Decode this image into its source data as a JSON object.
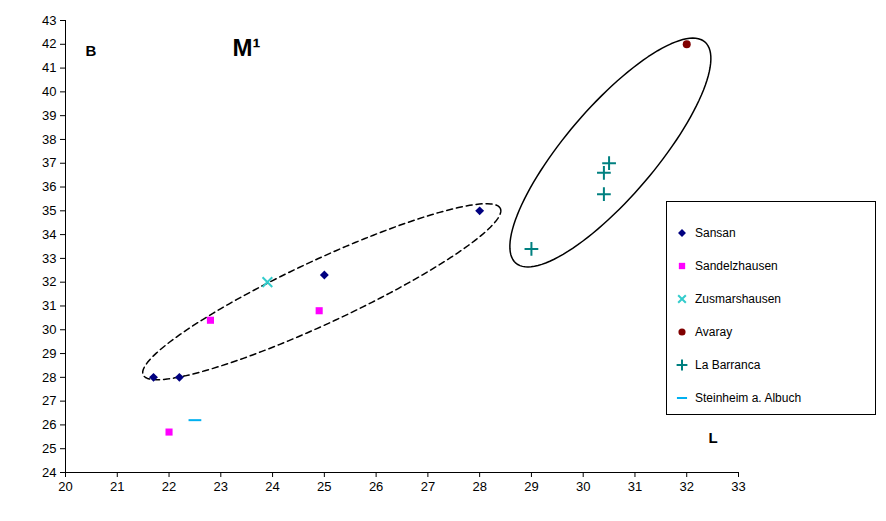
{
  "chart_data": {
    "type": "scatter",
    "title": "M¹",
    "x_label": "L",
    "y_label": "B",
    "xlim": [
      20,
      33
    ],
    "xticks": [
      20,
      21,
      22,
      23,
      24,
      25,
      26,
      27,
      28,
      29,
      30,
      31,
      32,
      33
    ],
    "ylim": [
      24,
      43
    ],
    "yticks": [
      24,
      25,
      26,
      27,
      28,
      29,
      30,
      31,
      32,
      33,
      34,
      35,
      36,
      37,
      38,
      39,
      40,
      41,
      42,
      43
    ],
    "grid": false,
    "legend": "right",
    "series": [
      {
        "name": "Sansan",
        "color": "#000080",
        "marker": "diamond",
        "x": [
          21.7,
          22.2,
          25,
          28
        ],
        "values": [
          28,
          28,
          32.3,
          35
        ]
      },
      {
        "name": "Sandelzhausen",
        "color": "#ff00ff",
        "marker": "square",
        "x": [
          22.8,
          24.9,
          22
        ],
        "values": [
          30.4,
          30.8,
          25.7
        ]
      },
      {
        "name": "Zusmarshausen",
        "color": "#33cccc",
        "marker": "x",
        "x": [
          23.9
        ],
        "values": [
          32
        ]
      },
      {
        "name": "Avaray",
        "color": "#800000",
        "marker": "circle",
        "x": [
          32
        ],
        "values": [
          42
        ]
      },
      {
        "name": "La Barranca",
        "color": "#008080",
        "marker": "plus",
        "x": [
          29,
          30.4,
          30.4,
          30.5
        ],
        "values": [
          33.4,
          35.7,
          36.6,
          37
        ]
      },
      {
        "name": "Steinheim a. Albuch",
        "color": "#00b0f0",
        "marker": "dash",
        "x": [
          22.5
        ],
        "values": [
          26.2
        ]
      }
    ],
    "ellipses": [
      {
        "from": [
          21.5,
          28.1
        ],
        "to": [
          28.4,
          35.1
        ],
        "line_style": "dashed"
      },
      {
        "from": [
          28.7,
          32.8
        ],
        "to": [
          32.35,
          42.1
        ],
        "line_style": "solid"
      }
    ]
  }
}
